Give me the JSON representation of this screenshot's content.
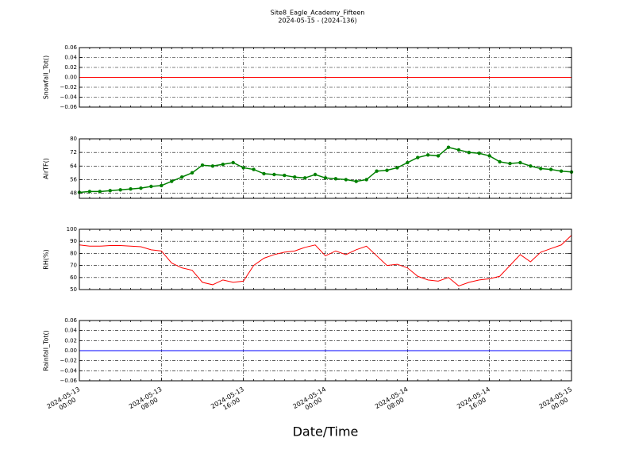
{
  "title": "Site8_Eagle_Academy_Fifteen",
  "subtitle": "2024-05-15 - (2024-136)",
  "xlabel": "Date/Time",
  "x": [
    "2024-05-13 00:00",
    "2024-05-13 01:00",
    "2024-05-13 02:00",
    "2024-05-13 03:00",
    "2024-05-13 04:00",
    "2024-05-13 05:00",
    "2024-05-13 06:00",
    "2024-05-13 07:00",
    "2024-05-13 08:00",
    "2024-05-13 09:00",
    "2024-05-13 10:00",
    "2024-05-13 11:00",
    "2024-05-13 12:00",
    "2024-05-13 13:00",
    "2024-05-13 14:00",
    "2024-05-13 15:00",
    "2024-05-13 16:00",
    "2024-05-13 17:00",
    "2024-05-13 18:00",
    "2024-05-13 19:00",
    "2024-05-13 20:00",
    "2024-05-13 21:00",
    "2024-05-13 22:00",
    "2024-05-13 23:00",
    "2024-05-14 00:00",
    "2024-05-14 01:00",
    "2024-05-14 02:00",
    "2024-05-14 03:00",
    "2024-05-14 04:00",
    "2024-05-14 05:00",
    "2024-05-14 06:00",
    "2024-05-14 07:00",
    "2024-05-14 08:00",
    "2024-05-14 09:00",
    "2024-05-14 10:00",
    "2024-05-14 11:00",
    "2024-05-14 12:00",
    "2024-05-14 13:00",
    "2024-05-14 14:00",
    "2024-05-14 15:00",
    "2024-05-14 16:00",
    "2024-05-14 17:00",
    "2024-05-14 18:00",
    "2024-05-14 19:00",
    "2024-05-14 20:00",
    "2024-05-14 21:00",
    "2024-05-14 22:00",
    "2024-05-14 23:00",
    "2024-05-15 00:00"
  ],
  "xlim": [
    "2024-05-13 00:00",
    "2024-05-15 00:00"
  ],
  "xticks": [
    {
      "value": "2024-05-13 00:00",
      "label": [
        "2024-05-13",
        "00:00"
      ]
    },
    {
      "value": "2024-05-13 08:00",
      "label": [
        "2024-05-13",
        "08:00"
      ]
    },
    {
      "value": "2024-05-13 16:00",
      "label": [
        "2024-05-13",
        "16:00"
      ]
    },
    {
      "value": "2024-05-14 00:00",
      "label": [
        "2024-05-14",
        "00:00"
      ]
    },
    {
      "value": "2024-05-14 08:00",
      "label": [
        "2024-05-14",
        "08:00"
      ]
    },
    {
      "value": "2024-05-14 16:00",
      "label": [
        "2024-05-14",
        "16:00"
      ]
    },
    {
      "value": "2024-05-15 00:00",
      "label": [
        "2024-05-15",
        "00:00"
      ]
    }
  ],
  "chart_data": [
    {
      "type": "line",
      "ylabel": "Snowfall_Tot()",
      "grid": true,
      "ylim": [
        -0.06,
        0.06
      ],
      "yticks": [
        {
          "value": -0.06,
          "label": "−0.06"
        },
        {
          "value": -0.04,
          "label": "−0.04"
        },
        {
          "value": -0.02,
          "label": "−0.02"
        },
        {
          "value": 0,
          "label": "0.00"
        },
        0.02,
        0.04,
        0.06
      ],
      "series": [
        {
          "color": "#ff0000",
          "values": [
            0,
            0,
            0,
            0,
            0,
            0,
            0,
            0,
            0,
            0,
            0,
            0,
            0,
            0,
            0,
            0,
            0,
            0,
            0,
            0,
            0,
            0,
            0,
            0,
            0,
            0,
            0,
            0,
            0,
            0,
            0,
            0,
            0,
            0,
            0,
            0,
            0,
            0,
            0,
            0,
            0,
            0,
            0,
            0,
            0,
            0,
            0,
            0,
            0
          ]
        }
      ]
    },
    {
      "type": "line",
      "ylabel": "AirTF()",
      "grid": true,
      "marker": true,
      "ylim": [
        45,
        80
      ],
      "yticks": [
        48,
        56,
        64,
        72,
        80
      ],
      "series": [
        {
          "color": "#008000",
          "values": [
            48.5,
            49,
            49,
            49.5,
            50,
            50.5,
            51,
            52,
            52.5,
            55,
            57.5,
            60,
            64.5,
            64,
            65,
            66,
            63,
            62,
            59.5,
            59,
            58.5,
            57.5,
            57,
            59,
            57,
            56.5,
            56,
            55,
            56,
            61,
            61.5,
            63,
            66,
            69,
            70.5,
            70,
            75,
            73.5,
            72,
            71.5,
            70,
            66.5,
            65.5,
            66,
            64,
            62.5,
            62,
            61,
            60.5
          ]
        }
      ]
    },
    {
      "type": "line",
      "ylabel": "RH(%)",
      "grid": true,
      "ylim": [
        50,
        100
      ],
      "yticks": [
        50,
        60,
        70,
        80,
        90,
        100
      ],
      "series": [
        {
          "color": "#ff0000",
          "values": [
            87,
            86,
            86,
            86.5,
            86.5,
            86,
            85.5,
            83,
            82,
            72,
            68,
            66,
            56,
            54,
            58,
            56,
            57,
            70,
            76,
            79,
            81,
            82,
            85,
            87,
            78,
            82,
            79,
            83,
            86,
            78,
            70,
            71,
            68,
            61,
            58,
            57,
            60,
            53,
            56,
            58,
            59,
            61,
            70,
            79,
            73,
            81,
            84,
            87,
            95
          ]
        }
      ]
    },
    {
      "type": "line",
      "ylabel": "Rainfall_Tot()",
      "grid": true,
      "ylim": [
        -0.06,
        0.06
      ],
      "yticks": [
        {
          "value": -0.06,
          "label": "−0.06"
        },
        {
          "value": -0.04,
          "label": "−0.04"
        },
        {
          "value": -0.02,
          "label": "−0.02"
        },
        {
          "value": 0,
          "label": "0.00"
        },
        0.02,
        0.04,
        0.06
      ],
      "series": [
        {
          "color": "#0000ff",
          "values": [
            0,
            0,
            0,
            0,
            0,
            0,
            0,
            0,
            0,
            0,
            0,
            0,
            0,
            0,
            0,
            0,
            0,
            0,
            0,
            0,
            0,
            0,
            0,
            0,
            0,
            0,
            0,
            0,
            0,
            0,
            0,
            0,
            0,
            0,
            0,
            0,
            0,
            0,
            0,
            0,
            0,
            0,
            0,
            0,
            0,
            0,
            0,
            0,
            0
          ]
        }
      ]
    }
  ]
}
